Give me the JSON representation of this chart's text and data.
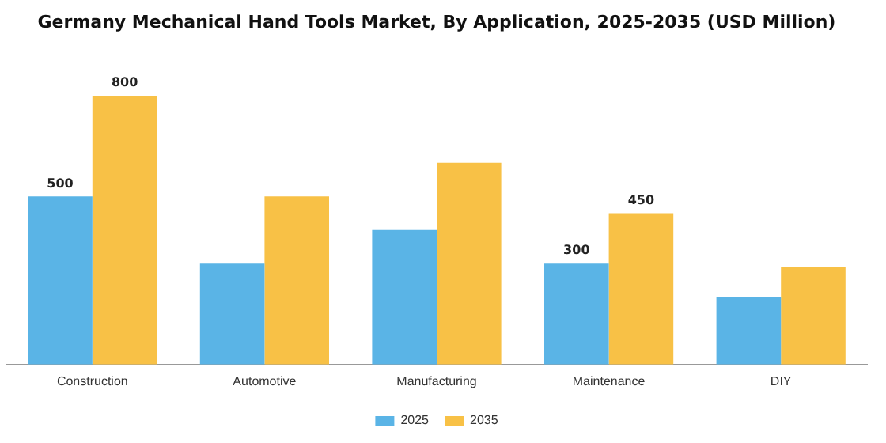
{
  "chart_data": {
    "type": "bar",
    "title": "Germany Mechanical Hand Tools Market, By Application, 2025-2035 (USD Million)",
    "categories": [
      "Construction",
      "Automotive",
      "Manufacturing",
      "Maintenance",
      "DIY"
    ],
    "series": [
      {
        "name": "2025",
        "color": "#5ab4e6",
        "values": [
          500,
          300,
          400,
          300,
          200
        ],
        "value_labels": [
          "500",
          null,
          null,
          "300",
          null
        ]
      },
      {
        "name": "2035",
        "color": "#f8c146",
        "values": [
          800,
          500,
          600,
          450,
          290
        ],
        "value_labels": [
          "800",
          null,
          null,
          "450",
          null
        ]
      }
    ],
    "grid": false,
    "legend": "bottom"
  }
}
